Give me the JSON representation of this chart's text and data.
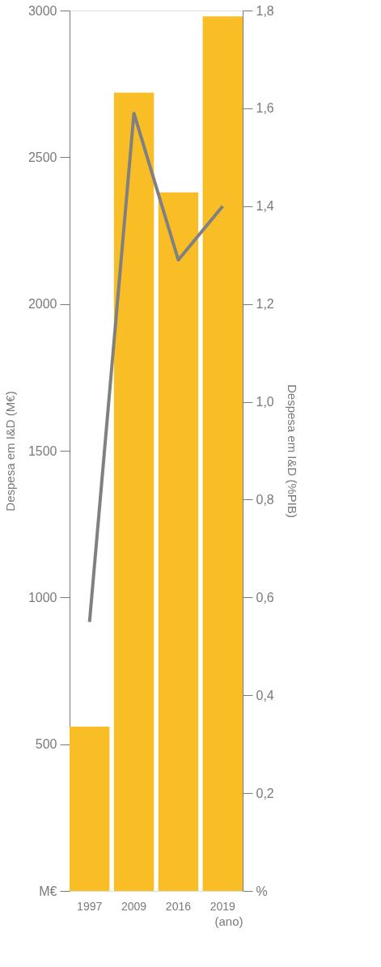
{
  "chart_data": {
    "type": "bar",
    "categories": [
      "1997",
      "2009",
      "2016",
      "2019"
    ],
    "xlabel": "(ano)",
    "ylabel": "Despesa em I&D (M€)",
    "y2label": "Despesa em I&D (%PIB)",
    "ylim": [
      0,
      3000
    ],
    "yticks": [
      {
        "value": 0,
        "label": "M€"
      },
      500,
      1000,
      1500,
      2000,
      2500,
      3000
    ],
    "y2lim": [
      0,
      1.8
    ],
    "y2ticks": [
      {
        "value": 0,
        "label": "%"
      },
      {
        "value": 0.2,
        "label": "0,2"
      },
      {
        "value": 0.4,
        "label": "0,4"
      },
      {
        "value": 0.6,
        "label": "0,6"
      },
      {
        "value": 0.8,
        "label": "0,8"
      },
      {
        "value": 1.0,
        "label": "1,0"
      },
      {
        "value": 1.2,
        "label": "1,2"
      },
      {
        "value": 1.4,
        "label": "1,4"
      },
      {
        "value": 1.6,
        "label": "1,6"
      },
      {
        "value": 1.8,
        "label": "1,8"
      }
    ],
    "series": [
      {
        "color": "#f9be26",
        "values": [
          560,
          2720,
          2380,
          2980
        ]
      },
      {
        "type": "line",
        "axis": "y2",
        "color": "#808080",
        "values": [
          0.55,
          1.59,
          1.29,
          1.4
        ]
      }
    ],
    "grid": false,
    "marker": "none",
    "line_style": "solid"
  }
}
